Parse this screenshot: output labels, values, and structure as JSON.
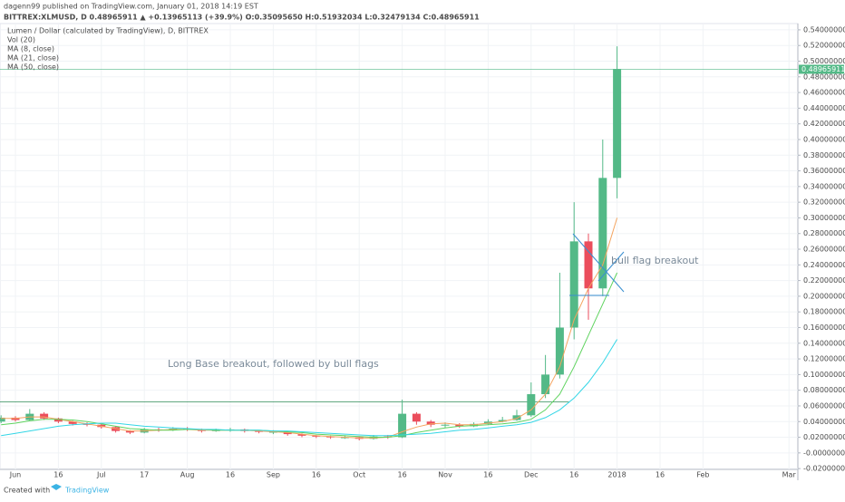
{
  "header": {
    "publisher": "dagenn99 published on TradingView.com, January 01, 2018 14:19 EST",
    "symbol_line": "BITTREX:XLMUSD, D  0.48965911 ▲ +0.13965113 (+39.9%) O:0.35095650 H:0.51932034 L:0.32479134 C:0.48965911"
  },
  "chart_data": {
    "type": "candlestick",
    "title": "Lumen / Dollar (calculated by TradingView), D, BITTREX",
    "volume_label": "Vol (20)",
    "categories": [
      null,
      "Jun",
      null,
      null,
      "16",
      null,
      null,
      "Jul",
      null,
      null,
      "17",
      null,
      null,
      "Aug",
      null,
      null,
      "16",
      null,
      null,
      "Sep",
      null,
      null,
      "16",
      null,
      null,
      "Oct",
      null,
      null,
      "16",
      null,
      null,
      "Nov",
      null,
      null,
      "16",
      null,
      null,
      "Dec",
      null,
      null,
      "16",
      null,
      null,
      "2018",
      null,
      null,
      "16",
      null,
      null,
      "Feb",
      null,
      null,
      null,
      null,
      null,
      "Mar"
    ],
    "open": [
      0.04,
      0.045,
      0.042,
      0.05,
      0.044,
      0.04,
      0.037,
      0.036,
      0.033,
      0.028,
      0.026,
      0.03,
      0.029,
      0.031,
      0.03,
      0.028,
      0.029,
      0.03,
      0.028,
      0.027,
      0.027,
      0.024,
      0.022,
      0.021,
      0.02,
      0.02,
      0.018,
      0.021,
      0.02,
      0.05,
      0.04,
      0.036,
      0.036,
      0.034,
      0.037,
      0.04,
      0.042,
      0.048,
      0.075,
      0.1,
      0.16,
      0.27,
      0.21,
      0.351,
      null,
      null,
      null,
      null,
      null,
      null,
      null,
      null,
      null,
      null,
      null,
      null
    ],
    "high": [
      0.048,
      0.047,
      0.056,
      0.052,
      0.045,
      0.041,
      0.039,
      0.037,
      0.034,
      0.029,
      0.032,
      0.032,
      0.033,
      0.033,
      0.031,
      0.031,
      0.032,
      0.031,
      0.029,
      0.029,
      0.028,
      0.025,
      0.023,
      0.022,
      0.022,
      0.021,
      0.023,
      0.023,
      0.068,
      0.052,
      0.042,
      0.039,
      0.038,
      0.039,
      0.043,
      0.046,
      0.055,
      0.09,
      0.125,
      0.23,
      0.32,
      0.28,
      0.4,
      0.519,
      null,
      null,
      null,
      null,
      null,
      null,
      null,
      null,
      null,
      null,
      null,
      null
    ],
    "low": [
      0.038,
      0.04,
      0.041,
      0.042,
      0.038,
      0.035,
      0.034,
      0.031,
      0.026,
      0.024,
      0.025,
      0.027,
      0.028,
      0.028,
      0.026,
      0.027,
      0.027,
      0.026,
      0.025,
      0.024,
      0.022,
      0.02,
      0.019,
      0.018,
      0.018,
      0.016,
      0.017,
      0.018,
      0.019,
      0.036,
      0.033,
      0.032,
      0.032,
      0.033,
      0.036,
      0.039,
      0.041,
      0.046,
      0.07,
      0.095,
      0.145,
      0.17,
      0.2,
      0.325,
      null,
      null,
      null,
      null,
      null,
      null,
      null,
      null,
      null,
      null,
      null,
      null
    ],
    "close": [
      0.045,
      0.042,
      0.05,
      0.044,
      0.04,
      0.037,
      0.036,
      0.033,
      0.028,
      0.026,
      0.03,
      0.029,
      0.031,
      0.03,
      0.028,
      0.029,
      0.03,
      0.028,
      0.027,
      0.027,
      0.024,
      0.022,
      0.021,
      0.02,
      0.02,
      0.018,
      0.021,
      0.02,
      0.05,
      0.04,
      0.036,
      0.036,
      0.034,
      0.037,
      0.04,
      0.042,
      0.048,
      0.075,
      0.1,
      0.16,
      0.27,
      0.21,
      0.351,
      0.49,
      null,
      null,
      null,
      null,
      null,
      null,
      null,
      null,
      null,
      null,
      null,
      null
    ],
    "up_color": "#53b987",
    "down_color": "#eb4d5c",
    "series": [
      {
        "name": "MA (8, close)",
        "color": "#f4a460",
        "values": [
          0.044,
          0.044,
          0.046,
          0.046,
          0.043,
          0.04,
          0.037,
          0.034,
          0.031,
          0.028,
          0.028,
          0.029,
          0.03,
          0.03,
          0.029,
          0.029,
          0.029,
          0.029,
          0.028,
          0.027,
          0.026,
          0.024,
          0.022,
          0.021,
          0.02,
          0.019,
          0.019,
          0.02,
          0.027,
          0.033,
          0.037,
          0.038,
          0.036,
          0.036,
          0.038,
          0.04,
          0.044,
          0.055,
          0.075,
          0.11,
          0.17,
          0.21,
          0.24,
          0.3,
          null,
          null,
          null,
          null,
          null,
          null,
          null,
          null,
          null,
          null,
          null,
          null
        ]
      },
      {
        "name": "MA (21, close)",
        "color": "#5fd35f",
        "values": [
          0.036,
          0.038,
          0.041,
          0.043,
          0.043,
          0.042,
          0.04,
          0.037,
          0.034,
          0.031,
          0.03,
          0.029,
          0.029,
          0.03,
          0.03,
          0.029,
          0.029,
          0.029,
          0.029,
          0.028,
          0.027,
          0.026,
          0.024,
          0.023,
          0.022,
          0.021,
          0.02,
          0.02,
          0.022,
          0.026,
          0.029,
          0.032,
          0.034,
          0.035,
          0.036,
          0.037,
          0.039,
          0.043,
          0.055,
          0.075,
          0.11,
          0.15,
          0.19,
          0.23,
          null,
          null,
          null,
          null,
          null,
          null,
          null,
          null,
          null,
          null,
          null,
          null
        ]
      },
      {
        "name": "MA (50, close)",
        "color": "#33d6e6",
        "values": [
          0.022,
          0.025,
          0.028,
          0.031,
          0.034,
          0.036,
          0.037,
          0.038,
          0.038,
          0.036,
          0.034,
          0.033,
          0.032,
          0.031,
          0.03,
          0.03,
          0.029,
          0.029,
          0.029,
          0.028,
          0.028,
          0.027,
          0.026,
          0.025,
          0.024,
          0.023,
          0.022,
          0.022,
          0.023,
          0.024,
          0.025,
          0.027,
          0.029,
          0.03,
          0.032,
          0.034,
          0.036,
          0.039,
          0.045,
          0.055,
          0.07,
          0.09,
          0.115,
          0.145,
          null,
          null,
          null,
          null,
          null,
          null,
          null,
          null,
          null,
          null,
          null,
          null
        ]
      }
    ],
    "ylim": [
      -0.021,
      0.548
    ],
    "yticks": [
      {
        "value": -0.02,
        "label": "-0.02000000"
      },
      {
        "value": 0,
        "label": "-0.00000000"
      },
      {
        "value": 0.02,
        "label": "0.02000000"
      },
      {
        "value": 0.04,
        "label": "0.04000000"
      },
      {
        "value": 0.06,
        "label": "0.06000000"
      },
      {
        "value": 0.08,
        "label": "0.08000000"
      },
      {
        "value": 0.1,
        "label": "0.10000000"
      },
      {
        "value": 0.12,
        "label": "0.12000000"
      },
      {
        "value": 0.14,
        "label": "0.14000000"
      },
      {
        "value": 0.16,
        "label": "0.16000000"
      },
      {
        "value": 0.18,
        "label": "0.18000000"
      },
      {
        "value": 0.2,
        "label": "0.20000000"
      },
      {
        "value": 0.22,
        "label": "0.22000000"
      },
      {
        "value": 0.24,
        "label": "0.24000000"
      },
      {
        "value": 0.26,
        "label": "0.26000000"
      },
      {
        "value": 0.28,
        "label": "0.28000000"
      },
      {
        "value": 0.3,
        "label": "0.30000000"
      },
      {
        "value": 0.32,
        "label": "0.32000000"
      },
      {
        "value": 0.34,
        "label": "0.34000000"
      },
      {
        "value": 0.36,
        "label": "0.36000000"
      },
      {
        "value": 0.38,
        "label": "0.38000000"
      },
      {
        "value": 0.4,
        "label": "0.40000000"
      },
      {
        "value": 0.42,
        "label": "0.42000000"
      },
      {
        "value": 0.44,
        "label": "0.44000000"
      },
      {
        "value": 0.46,
        "label": "0.46000000"
      },
      {
        "value": 0.48,
        "label": "0.48000000"
      },
      {
        "value": 0.5,
        "label": "0.50000000"
      },
      {
        "value": 0.52,
        "label": "0.52000000"
      },
      {
        "value": 0.54,
        "label": "0.54000000"
      }
    ],
    "grid": true,
    "base_level": 0.065,
    "last_price": 0.48965911,
    "annotations": [
      "Long Base breakout, followed by bull flags",
      "bull flag breakout"
    ]
  },
  "footer": {
    "created": "Created with",
    "brand": "TradingView"
  }
}
